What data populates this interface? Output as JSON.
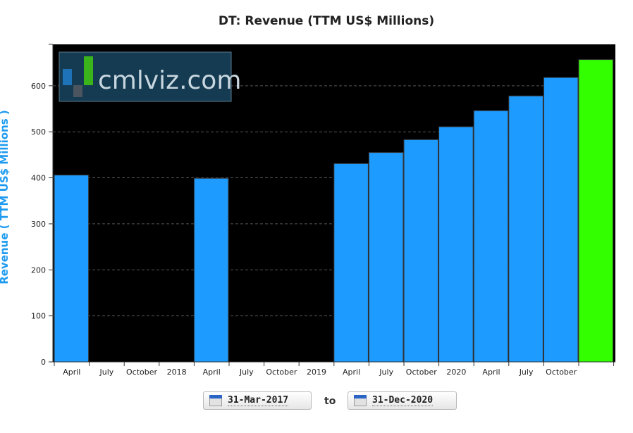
{
  "title": "DT: Revenue (TTM US$ Millions)",
  "ylabel": "Revenue ( TTM US$ Millions )",
  "logo": "cmlviz.com",
  "date_range": {
    "from": "31-Mar-2017",
    "to_label": "to",
    "to": "31-Dec-2020"
  },
  "colors": {
    "bar": "#1e9bfe",
    "latest_bar": "#33ff00",
    "background": "#000000",
    "accent": "#1e9bf0"
  },
  "chart_data": {
    "type": "bar",
    "title": "DT: Revenue (TTM US$ Millions)",
    "ylabel": "Revenue ( TTM US$ Millions )",
    "xlabel": "",
    "ylim": [
      0,
      690
    ],
    "yticks": [
      0,
      100,
      200,
      300,
      400,
      500,
      600
    ],
    "grid": true,
    "x_tick_labels": [
      "April",
      "July",
      "October",
      "2018",
      "April",
      "July",
      "October",
      "2019",
      "April",
      "July",
      "October",
      "2020",
      "April",
      "July",
      "October"
    ],
    "categories": [
      "Mar 2017",
      "Jun 2017",
      "Sep 2017",
      "Dec 2017",
      "Mar 2018",
      "Jun 2018",
      "Sep 2018",
      "Dec 2018",
      "Mar 2019",
      "Jun 2019",
      "Sep 2019",
      "Dec 2019",
      "Mar 2020",
      "Jun 2020",
      "Sep 2020",
      "Dec 2020"
    ],
    "values": [
      406,
      null,
      null,
      null,
      399,
      null,
      null,
      null,
      431,
      455,
      483,
      511,
      546,
      578,
      618,
      657
    ],
    "highlight_last": true
  }
}
